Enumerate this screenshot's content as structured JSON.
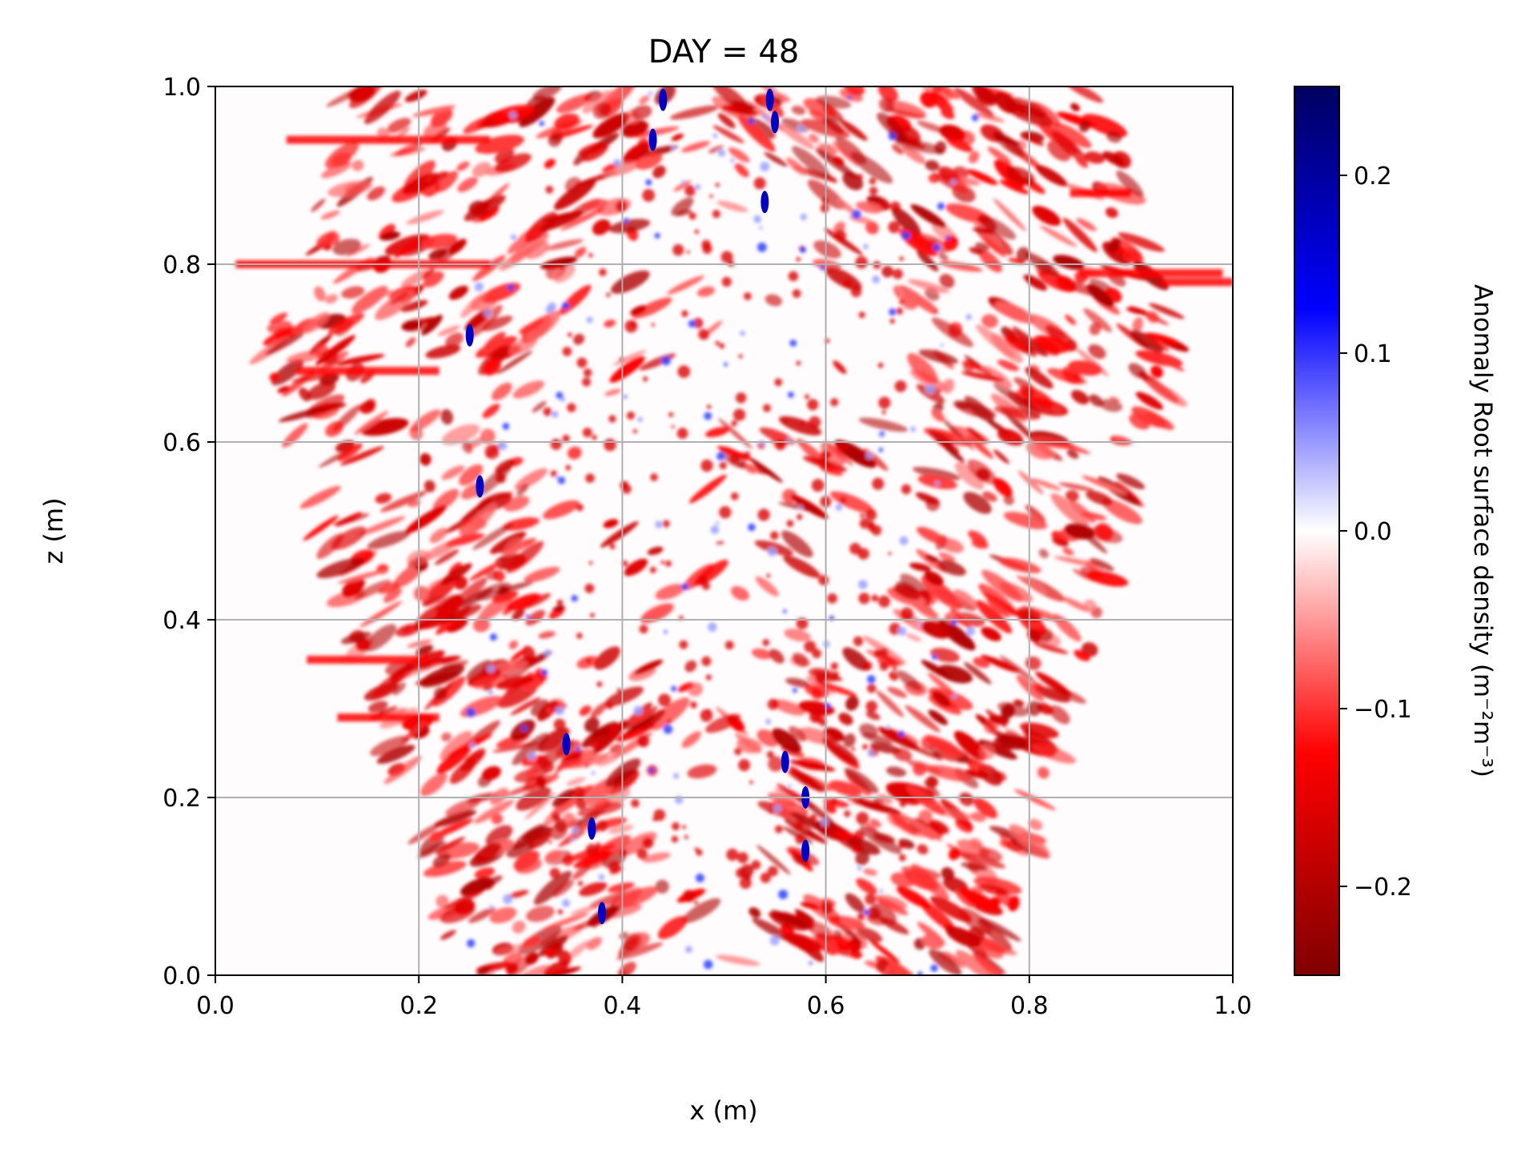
{
  "chart_data": {
    "type": "heatmap",
    "title": "DAY = 48",
    "xlabel": "x (m)",
    "ylabel": "z (m)",
    "xlim": [
      0.0,
      1.0
    ],
    "ylim": [
      0.0,
      1.0
    ],
    "x_ticks": [
      "0.0",
      "0.2",
      "0.4",
      "0.6",
      "0.8",
      "1.0"
    ],
    "y_ticks": [
      "0.0",
      "0.2",
      "0.4",
      "0.6",
      "0.8",
      "1.0"
    ],
    "grid": true,
    "colormap": "seismic_r",
    "colorbar": {
      "label": "Anomaly Root surface density (m⁻²m⁻³)",
      "range": [
        -0.25,
        0.25
      ],
      "ticks": [
        "−0.2",
        "−0.1",
        "0.0",
        "0.1",
        "0.2"
      ],
      "tick_values": [
        -0.2,
        -0.1,
        0.0,
        0.1,
        0.2
      ]
    },
    "colors": {
      "negative_extreme": "#800000",
      "negative": "#ff0000",
      "zero": "#ffffff",
      "positive": "#0000ff",
      "positive_extreme": "#000060",
      "grid": "#b0b0b0"
    }
  }
}
